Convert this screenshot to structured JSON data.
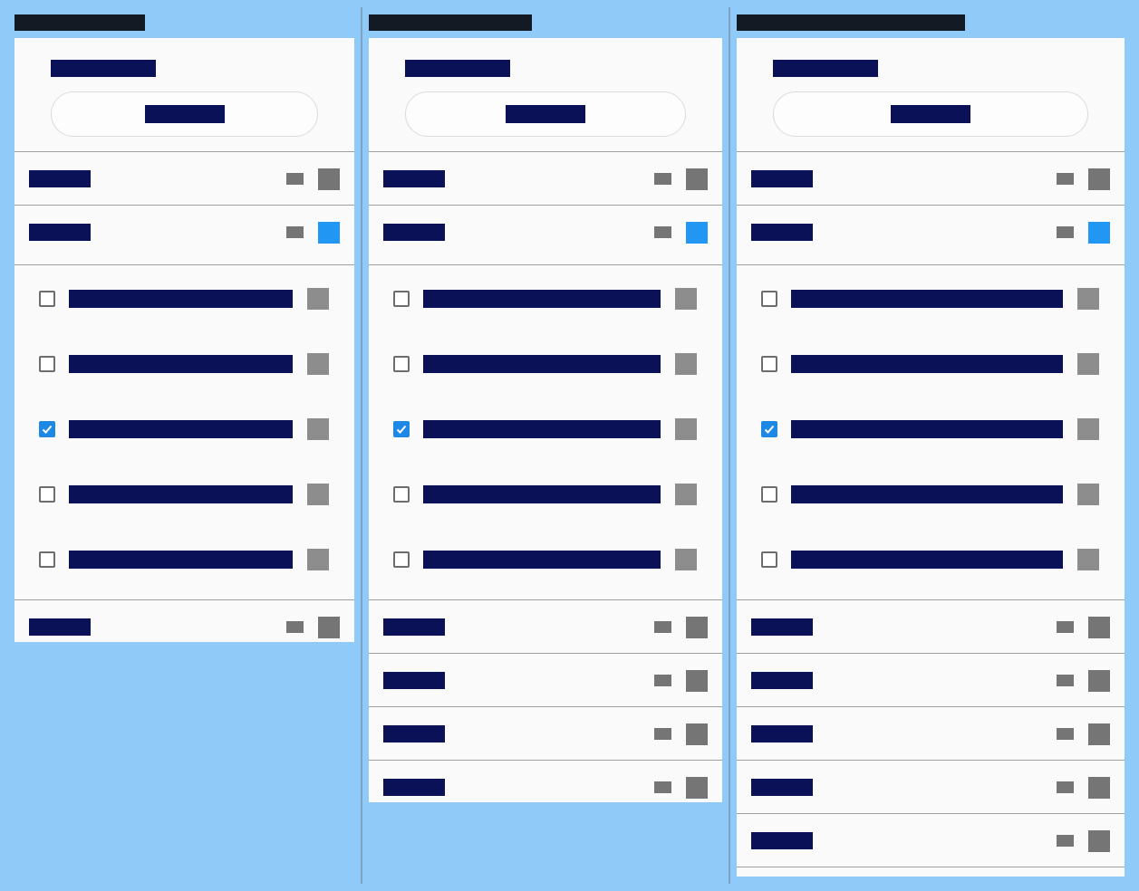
{
  "colors": {
    "background": "#90caf9",
    "panel": "#fafafa",
    "text_block": "#0a1157",
    "title_block": "#131a24",
    "accent": "#2196f3",
    "checkbox_checked": "#1e88e5",
    "border": "#9e9e9e"
  },
  "columns": [
    {
      "name": "column-1",
      "rows_before": [
        {
          "active": false
        },
        {
          "active": true
        }
      ],
      "sublist": [
        {
          "checked": false
        },
        {
          "checked": false
        },
        {
          "checked": true
        },
        {
          "checked": false
        },
        {
          "checked": false
        }
      ],
      "rows_after": [
        {
          "active": false
        }
      ]
    },
    {
      "name": "column-2",
      "rows_before": [
        {
          "active": false
        },
        {
          "active": true
        }
      ],
      "sublist": [
        {
          "checked": false
        },
        {
          "checked": false
        },
        {
          "checked": true
        },
        {
          "checked": false
        },
        {
          "checked": false
        }
      ],
      "rows_after": [
        {
          "active": false
        },
        {
          "active": false
        },
        {
          "active": false
        },
        {
          "active": false
        }
      ]
    },
    {
      "name": "column-3",
      "rows_before": [
        {
          "active": false
        },
        {
          "active": true
        }
      ],
      "sublist": [
        {
          "checked": false
        },
        {
          "checked": false
        },
        {
          "checked": true
        },
        {
          "checked": false
        },
        {
          "checked": false
        }
      ],
      "rows_after": [
        {
          "active": false
        },
        {
          "active": false
        },
        {
          "active": false
        },
        {
          "active": false
        },
        {
          "active": false
        },
        {
          "active": false
        }
      ]
    }
  ],
  "icons": {
    "checkbox": "checkbox-icon",
    "check": "checkmark-icon"
  }
}
